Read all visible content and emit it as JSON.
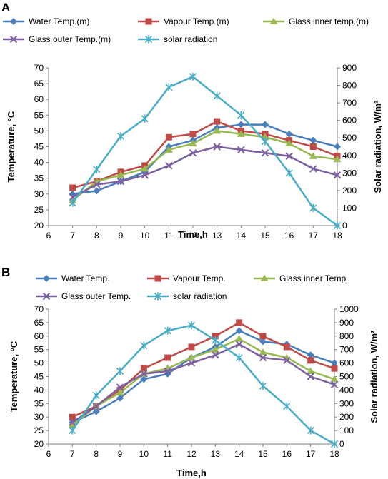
{
  "panels": [
    {
      "letter": "A",
      "legend_rows": [
        [
          0,
          1,
          2
        ],
        [
          3,
          4
        ]
      ],
      "chart_data": {
        "type": "line",
        "x": [
          7,
          8,
          9,
          10,
          11,
          12,
          13,
          14,
          15,
          16,
          17,
          18
        ],
        "xlim": [
          6,
          18
        ],
        "xticks": [
          6,
          7,
          8,
          9,
          10,
          11,
          12,
          13,
          14,
          15,
          16,
          17,
          18
        ],
        "xlabel": "Time,h",
        "ylabel": "Temperature, °C",
        "ylim": [
          20,
          70
        ],
        "yticks": [
          20,
          25,
          30,
          35,
          40,
          45,
          50,
          55,
          60,
          65,
          70
        ],
        "y2label": "Solar radiation, W/m²",
        "y2lim": [
          0,
          900
        ],
        "y2ticks": [
          0,
          100,
          200,
          300,
          400,
          500,
          600,
          700,
          800,
          900
        ],
        "grid": false,
        "legend": "top",
        "series": [
          {
            "name": "Water Temp.(m)",
            "color": "#4a7ebb",
            "marker": "diamond",
            "axis": "left",
            "values": [
              30,
              31,
              34,
              37,
              45,
              47,
              51,
              52,
              52,
              49,
              47,
              45
            ]
          },
          {
            "name": "Vapour Temp.(m)",
            "color": "#be4b48",
            "marker": "square",
            "axis": "left",
            "values": [
              32,
              34,
              37,
              39,
              48,
              49,
              53,
              50,
              49,
              47,
              45,
              42
            ]
          },
          {
            "name": "Glass inner temp.(m)",
            "color": "#98b954",
            "marker": "triangle",
            "axis": "left",
            "values": [
              28,
              34,
              36,
              38,
              44,
              46,
              50,
              49,
              48,
              46,
              42,
              41
            ]
          },
          {
            "name": "Glass outer  Temp.(m)",
            "color": "#7d60a0",
            "marker": "x",
            "axis": "left",
            "values": [
              29,
              33,
              34,
              36,
              39,
              43,
              45,
              44,
              43,
              42,
              38,
              36
            ]
          },
          {
            "name": "solar radiation",
            "color": "#4bacc6",
            "marker": "star",
            "axis": "right",
            "values": [
              130,
              320,
              510,
              610,
              790,
              850,
              740,
              630,
              480,
              300,
              100,
              0
            ]
          }
        ]
      }
    },
    {
      "letter": "B",
      "legend_rows": [
        [
          0,
          1,
          2
        ],
        [
          3,
          4
        ]
      ],
      "chart_data": {
        "type": "line",
        "x": [
          7,
          8,
          9,
          10,
          11,
          12,
          13,
          14,
          15,
          16,
          17,
          18
        ],
        "xlim": [
          6,
          18
        ],
        "xticks": [
          6,
          7,
          8,
          9,
          10,
          11,
          12,
          13,
          14,
          15,
          16,
          17,
          18
        ],
        "xlabel": "Time,h",
        "ylabel": "Temperature, °C",
        "ylim": [
          20,
          70
        ],
        "yticks": [
          20,
          25,
          30,
          35,
          40,
          45,
          50,
          55,
          60,
          65,
          70
        ],
        "y2label": "Solar radiation, W/m²",
        "y2lim": [
          0,
          1000
        ],
        "y2ticks": [
          0,
          100,
          200,
          300,
          400,
          500,
          600,
          700,
          800,
          900,
          1000
        ],
        "grid": false,
        "legend": "top",
        "series": [
          {
            "name": "Water Temp.",
            "color": "#4a7ebb",
            "marker": "diamond",
            "axis": "left",
            "values": [
              28,
              32,
              37,
              44,
              46,
              52,
              56,
              62,
              58,
              57,
              53,
              50
            ]
          },
          {
            "name": "Vapour Temp.",
            "color": "#be4b48",
            "marker": "square",
            "axis": "left",
            "values": [
              30,
              34,
              40,
              48,
              52,
              56,
              60,
              65,
              60,
              56,
              51,
              48
            ]
          },
          {
            "name": "Glass inner Temp.",
            "color": "#98b954",
            "marker": "triangle",
            "axis": "left",
            "values": [
              27,
              34,
              39,
              46,
              48,
              52,
              55,
              59,
              54,
              52,
              47,
              44
            ]
          },
          {
            "name": "Glass outer  Temp.",
            "color": "#7d60a0",
            "marker": "x",
            "axis": "left",
            "values": [
              28,
              34,
              41,
              46,
              47,
              50,
              53,
              57,
              52,
              51,
              45,
              42
            ]
          },
          {
            "name": "solar radiation",
            "color": "#4bacc6",
            "marker": "star",
            "axis": "right",
            "values": [
              100,
              360,
              540,
              730,
              840,
              880,
              770,
              640,
              430,
              280,
              100,
              0
            ]
          }
        ]
      }
    }
  ]
}
